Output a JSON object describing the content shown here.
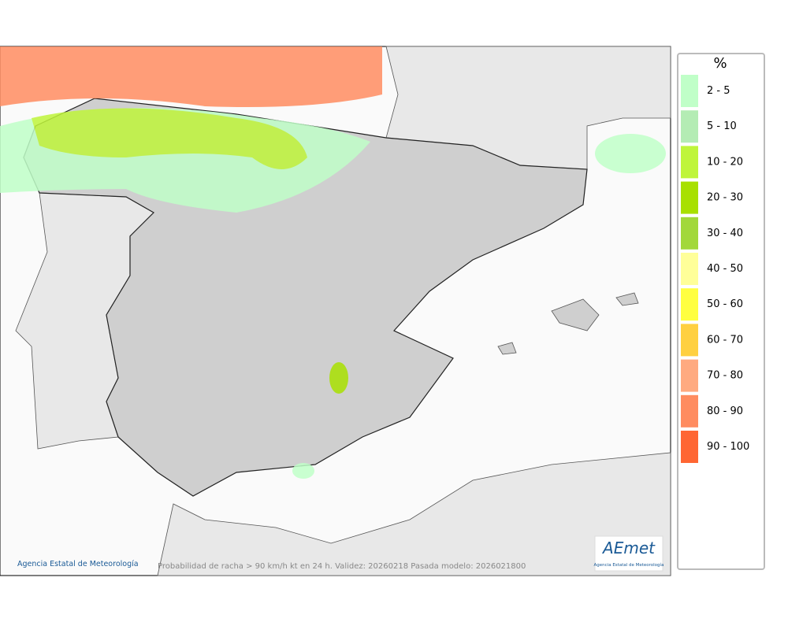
{
  "map": {
    "credit": "Agencia Estatal de Meteorología",
    "caption": "Probabilidad de racha > 90 km/h kt en 24 h. Validez: 20260218 Pasada modelo: 2026021800",
    "logo": "AEmet",
    "logo_subtitle": "Agencia Estatal de Meteorología"
  },
  "legend": {
    "title": "%",
    "items": [
      {
        "label": "2 - 5",
        "color": "#c0ffc8"
      },
      {
        "label": "5 - 10",
        "color": "#b4ecb4"
      },
      {
        "label": "10 - 20",
        "color": "#bff53a"
      },
      {
        "label": "20 - 30",
        "color": "#a8e000"
      },
      {
        "label": "30 - 40",
        "color": "#a2d83a"
      },
      {
        "label": "40 - 50",
        "color": "#ffff99"
      },
      {
        "label": "50 - 60",
        "color": "#ffff40"
      },
      {
        "label": "60 - 70",
        "color": "#ffd040"
      },
      {
        "label": "70 - 80",
        "color": "#ffaa80"
      },
      {
        "label": "80 - 90",
        "color": "#ff8c60"
      },
      {
        "label": "90 - 100",
        "color": "#ff6633"
      }
    ]
  }
}
